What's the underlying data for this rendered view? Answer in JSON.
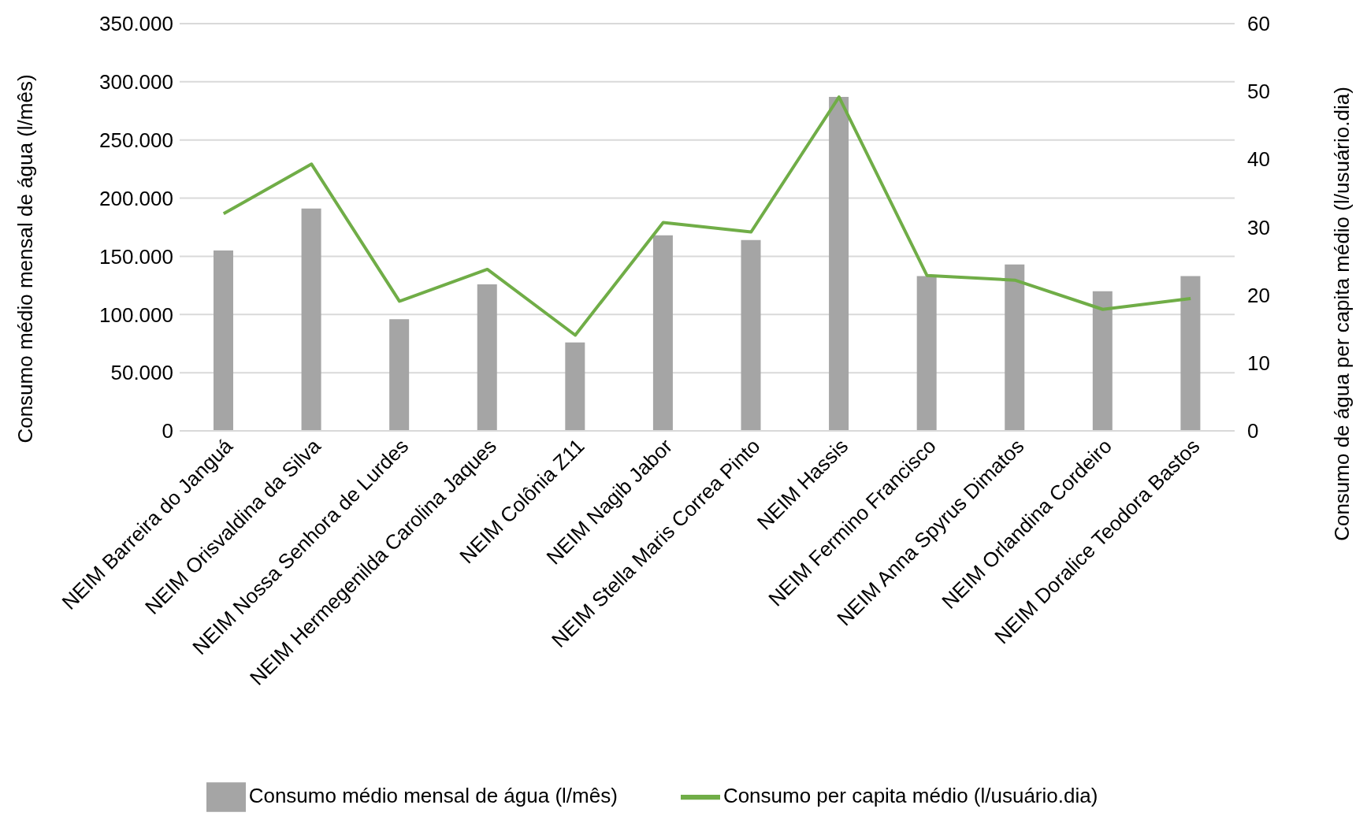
{
  "chart_data": {
    "type": "bar",
    "categories": [
      "NEIM Barreira do Janguá",
      "NEIM Orisvaldina da Silva",
      "NEIM Nossa Senhora de Lurdes",
      "NEIM Hermegenilda Carolina Jaques",
      "NEIM Colônia Z11",
      "NEIM Nagib Jabor",
      "NEIM Stella Maris Correa Pinto",
      "NEIM Hassis",
      "NEIM Fermino Francisco",
      "NEIM Anna Spyrus Dimatos",
      "NEIM Orlandina Cordeiro",
      "NEIM Doralice Teodora Bastos"
    ],
    "series": [
      {
        "name": "Consumo médio mensal de água (l/mês)",
        "color": "#a5a5a5",
        "values": [
          155000,
          191000,
          96000,
          126000,
          76000,
          168000,
          164000,
          287000,
          133000,
          143000,
          120000,
          133000
        ]
      },
      {
        "name": "Consumo per capita médio (l/usuário.dia)",
        "type": "line",
        "axis": "y2",
        "color": "#70ad47",
        "values": [
          32.0,
          39.3,
          19.1,
          23.8,
          14.1,
          30.7,
          29.3,
          49.2,
          22.9,
          22.2,
          17.9,
          19.5
        ]
      }
    ],
    "ylabel": "Consumo médio mensal de água (l/mês)",
    "y2label": "Consumo de água per capita médio (l/usuário.dia)",
    "ylim": [
      0,
      350000
    ],
    "yticks": [
      {
        "value": 0,
        "label": "0"
      },
      {
        "value": 50000,
        "label": "50.000"
      },
      {
        "value": 100000,
        "label": "100.000"
      },
      {
        "value": 150000,
        "label": "150.000"
      },
      {
        "value": 200000,
        "label": "200.000"
      },
      {
        "value": 250000,
        "label": "250.000"
      },
      {
        "value": 300000,
        "label": "300.000"
      },
      {
        "value": 350000,
        "label": "350.000"
      }
    ],
    "y2lim": [
      0,
      60
    ],
    "y2ticks": [
      0,
      10,
      20,
      30,
      40,
      50,
      60
    ],
    "grid": "y",
    "legend": "bottom",
    "marker": "none"
  }
}
